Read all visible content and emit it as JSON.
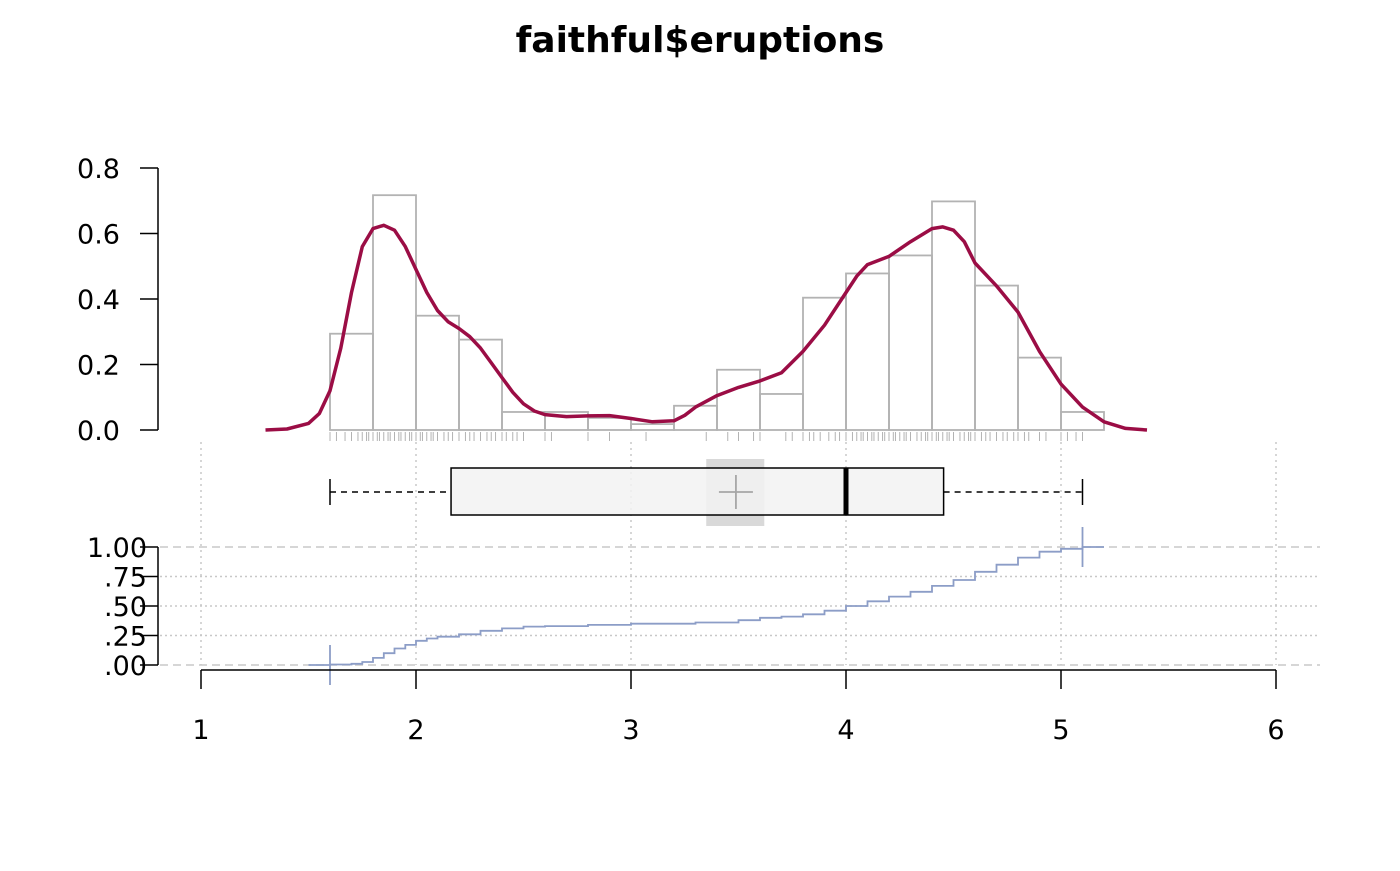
{
  "title": "faithful$eruptions",
  "chart_data": [
    {
      "type": "histogram",
      "role": "density histogram with kernel density curve and rug",
      "xlim": [
        1,
        6
      ],
      "ylim": [
        0,
        0.8
      ],
      "y_ticks": [
        "0.0",
        "0.2",
        "0.4",
        "0.6",
        "0.8"
      ],
      "y_tick_values": [
        0,
        0.2,
        0.4,
        0.6,
        0.8
      ],
      "bins": [
        {
          "x0": 1.6,
          "x1": 1.8,
          "density": 0.294
        },
        {
          "x0": 1.8,
          "x1": 2.0,
          "density": 0.717
        },
        {
          "x0": 2.0,
          "x1": 2.2,
          "density": 0.349
        },
        {
          "x0": 2.2,
          "x1": 2.4,
          "density": 0.276
        },
        {
          "x0": 2.4,
          "x1": 2.6,
          "density": 0.055
        },
        {
          "x0": 2.6,
          "x1": 2.8,
          "density": 0.055
        },
        {
          "x0": 2.8,
          "x1": 3.0,
          "density": 0.037
        },
        {
          "x0": 3.0,
          "x1": 3.2,
          "density": 0.018
        },
        {
          "x0": 3.2,
          "x1": 3.4,
          "density": 0.074
        },
        {
          "x0": 3.4,
          "x1": 3.6,
          "density": 0.184
        },
        {
          "x0": 3.6,
          "x1": 3.8,
          "density": 0.11
        },
        {
          "x0": 3.8,
          "x1": 4.0,
          "density": 0.404
        },
        {
          "x0": 4.0,
          "x1": 4.2,
          "density": 0.478
        },
        {
          "x0": 4.2,
          "x1": 4.4,
          "density": 0.533
        },
        {
          "x0": 4.4,
          "x1": 4.6,
          "density": 0.698
        },
        {
          "x0": 4.6,
          "x1": 4.8,
          "density": 0.441
        },
        {
          "x0": 4.8,
          "x1": 5.0,
          "density": 0.221
        },
        {
          "x0": 5.0,
          "x1": 5.2,
          "density": 0.055
        }
      ],
      "density_curve": [
        [
          1.3,
          0.0
        ],
        [
          1.4,
          0.003
        ],
        [
          1.5,
          0.02
        ],
        [
          1.55,
          0.05
        ],
        [
          1.6,
          0.12
        ],
        [
          1.65,
          0.25
        ],
        [
          1.7,
          0.42
        ],
        [
          1.75,
          0.56
        ],
        [
          1.8,
          0.615
        ],
        [
          1.85,
          0.625
        ],
        [
          1.9,
          0.61
        ],
        [
          1.95,
          0.56
        ],
        [
          2.0,
          0.49
        ],
        [
          2.05,
          0.42
        ],
        [
          2.1,
          0.365
        ],
        [
          2.15,
          0.33
        ],
        [
          2.2,
          0.31
        ],
        [
          2.25,
          0.285
        ],
        [
          2.3,
          0.25
        ],
        [
          2.35,
          0.205
        ],
        [
          2.4,
          0.16
        ],
        [
          2.45,
          0.115
        ],
        [
          2.5,
          0.08
        ],
        [
          2.55,
          0.058
        ],
        [
          2.6,
          0.047
        ],
        [
          2.7,
          0.041
        ],
        [
          2.8,
          0.043
        ],
        [
          2.9,
          0.044
        ],
        [
          3.0,
          0.035
        ],
        [
          3.1,
          0.025
        ],
        [
          3.2,
          0.028
        ],
        [
          3.25,
          0.045
        ],
        [
          3.3,
          0.07
        ],
        [
          3.4,
          0.105
        ],
        [
          3.5,
          0.13
        ],
        [
          3.6,
          0.15
        ],
        [
          3.7,
          0.175
        ],
        [
          3.8,
          0.24
        ],
        [
          3.9,
          0.32
        ],
        [
          4.0,
          0.42
        ],
        [
          4.05,
          0.47
        ],
        [
          4.1,
          0.505
        ],
        [
          4.2,
          0.53
        ],
        [
          4.3,
          0.575
        ],
        [
          4.4,
          0.615
        ],
        [
          4.45,
          0.62
        ],
        [
          4.5,
          0.61
        ],
        [
          4.55,
          0.575
        ],
        [
          4.6,
          0.51
        ],
        [
          4.7,
          0.44
        ],
        [
          4.8,
          0.36
        ],
        [
          4.9,
          0.24
        ],
        [
          5.0,
          0.14
        ],
        [
          5.1,
          0.07
        ],
        [
          5.2,
          0.025
        ],
        [
          5.3,
          0.005
        ],
        [
          5.4,
          0.0
        ]
      ],
      "rug": [
        1.6,
        1.63,
        1.67,
        1.7,
        1.73,
        1.75,
        1.77,
        1.78,
        1.8,
        1.82,
        1.83,
        1.85,
        1.87,
        1.88,
        1.9,
        1.92,
        1.93,
        1.95,
        1.97,
        1.98,
        2.0,
        2.02,
        2.03,
        2.05,
        2.07,
        2.08,
        2.1,
        2.13,
        2.15,
        2.17,
        2.2,
        2.23,
        2.25,
        2.27,
        2.3,
        2.33,
        2.35,
        2.37,
        2.4,
        2.42,
        2.45,
        2.47,
        2.5,
        2.6,
        2.63,
        2.8,
        2.9,
        3.07,
        3.35,
        3.45,
        3.5,
        3.57,
        3.6,
        3.72,
        3.75,
        3.8,
        3.83,
        3.85,
        3.88,
        3.92,
        3.95,
        3.97,
        4.0,
        4.03,
        4.05,
        4.07,
        4.08,
        4.1,
        4.12,
        4.13,
        4.15,
        4.17,
        4.18,
        4.2,
        4.22,
        4.23,
        4.25,
        4.27,
        4.28,
        4.3,
        4.33,
        4.35,
        4.37,
        4.38,
        4.4,
        4.42,
        4.43,
        4.45,
        4.47,
        4.48,
        4.5,
        4.53,
        4.55,
        4.57,
        4.58,
        4.6,
        4.63,
        4.65,
        4.67,
        4.7,
        4.73,
        4.75,
        4.78,
        4.8,
        4.83,
        4.85,
        4.9,
        4.93,
        5.0,
        5.03,
        5.07,
        5.1
      ]
    },
    {
      "type": "boxplot",
      "whisker_low": 1.6,
      "q1": 2.163,
      "median": 4.0,
      "q3": 4.454,
      "whisker_high": 5.1,
      "mean": 3.488,
      "mean_ci": [
        3.35,
        3.62
      ]
    },
    {
      "type": "step",
      "role": "empirical cumulative distribution",
      "xlim": [
        1,
        6
      ],
      "ylim": [
        0,
        1
      ],
      "y_ticks": [
        ".00",
        ".25",
        ".50",
        ".75",
        "1.00"
      ],
      "y_tick_values": [
        0,
        0.25,
        0.5,
        0.75,
        1.0
      ],
      "points": [
        [
          1.5,
          0.0
        ],
        [
          1.6,
          0.004
        ],
        [
          1.7,
          0.01
        ],
        [
          1.75,
          0.025
        ],
        [
          1.8,
          0.06
        ],
        [
          1.85,
          0.1
        ],
        [
          1.9,
          0.14
        ],
        [
          1.95,
          0.17
        ],
        [
          2.0,
          0.205
        ],
        [
          2.05,
          0.225
        ],
        [
          2.1,
          0.24
        ],
        [
          2.2,
          0.26
        ],
        [
          2.3,
          0.29
        ],
        [
          2.4,
          0.31
        ],
        [
          2.5,
          0.325
        ],
        [
          2.6,
          0.33
        ],
        [
          2.8,
          0.34
        ],
        [
          3.0,
          0.35
        ],
        [
          3.3,
          0.36
        ],
        [
          3.5,
          0.38
        ],
        [
          3.6,
          0.4
        ],
        [
          3.7,
          0.41
        ],
        [
          3.8,
          0.43
        ],
        [
          3.9,
          0.46
        ],
        [
          4.0,
          0.5
        ],
        [
          4.1,
          0.54
        ],
        [
          4.2,
          0.58
        ],
        [
          4.3,
          0.62
        ],
        [
          4.4,
          0.67
        ],
        [
          4.5,
          0.72
        ],
        [
          4.6,
          0.79
        ],
        [
          4.7,
          0.85
        ],
        [
          4.8,
          0.91
        ],
        [
          4.9,
          0.96
        ],
        [
          5.0,
          0.985
        ],
        [
          5.1,
          1.0
        ],
        [
          5.2,
          1.0
        ]
      ],
      "markers": [
        1.6,
        5.1
      ]
    }
  ],
  "x_axis": {
    "ticks": [
      "1",
      "2",
      "3",
      "4",
      "5",
      "6"
    ],
    "tick_values": [
      1,
      2,
      3,
      4,
      5,
      6
    ]
  },
  "colors": {
    "density_curve": "#9b0d45",
    "histogram_bar": "#b3b3b3",
    "ecdf": "#8c9dc7",
    "box_fill": "#f2f2f2",
    "mean_ci_band": "#d9d9d9",
    "grid": "#c8c8c8"
  }
}
